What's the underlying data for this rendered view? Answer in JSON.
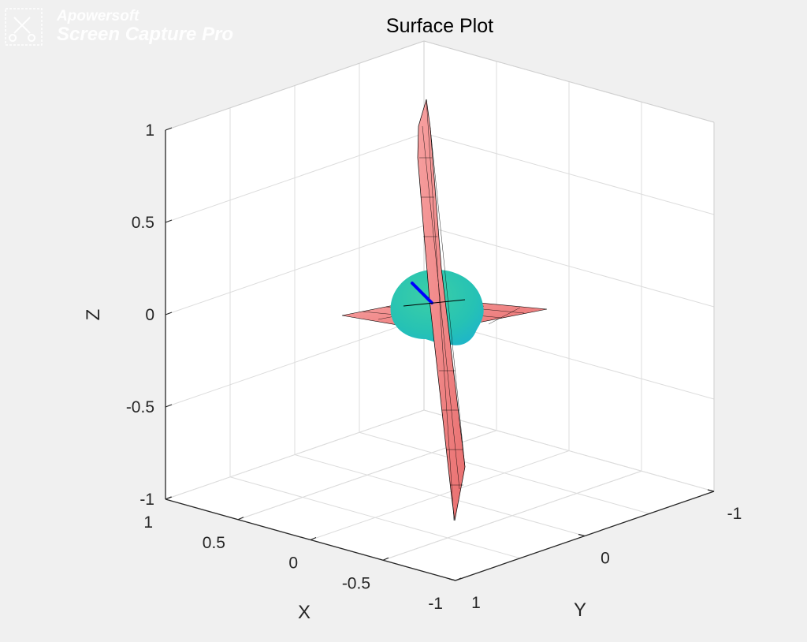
{
  "watermark": {
    "brand": "Apowersoft",
    "product": "Screen Capture Pro",
    "icon": "scissors-pen-icon"
  },
  "chart_data": {
    "type": "surface3d",
    "title": "Surface Plot",
    "xlabel": "X",
    "ylabel": "Y",
    "zlabel": "Z",
    "xlim": [
      -1,
      1
    ],
    "ylim": [
      -1,
      1
    ],
    "zlim": [
      -1,
      1
    ],
    "x_ticks": [
      1,
      0.5,
      0,
      -0.5,
      -1
    ],
    "y_ticks": [
      -1,
      0,
      1
    ],
    "z_ticks": [
      1,
      0.5,
      0,
      -0.5,
      -1
    ],
    "x_tick_labels": [
      "1",
      "0.5",
      "0",
      "-0.5",
      "-1"
    ],
    "y_tick_labels": [
      "-1",
      "0",
      "1"
    ],
    "z_tick_labels": [
      "1",
      "0.5",
      "0",
      "-0.5",
      "-1"
    ],
    "grid": true,
    "view": "isometric",
    "surfaces": [
      {
        "name": "vertical plane",
        "color": "#f08080",
        "edge_color": "#000000",
        "extent_z": [
          -1,
          1
        ]
      },
      {
        "name": "horizontal plane",
        "color": "#f08080",
        "edge_color": "#000000",
        "extent_z": [
          0,
          0
        ]
      },
      {
        "name": "sphere",
        "color": "#2ec4b0",
        "center": [
          0,
          0,
          0
        ],
        "radius": 0.2
      }
    ],
    "vectors": [
      {
        "name": "normal vector",
        "color": "#0000ff",
        "from": [
          0,
          0,
          0
        ],
        "to": [
          0,
          0.1,
          0.13
        ]
      }
    ]
  }
}
